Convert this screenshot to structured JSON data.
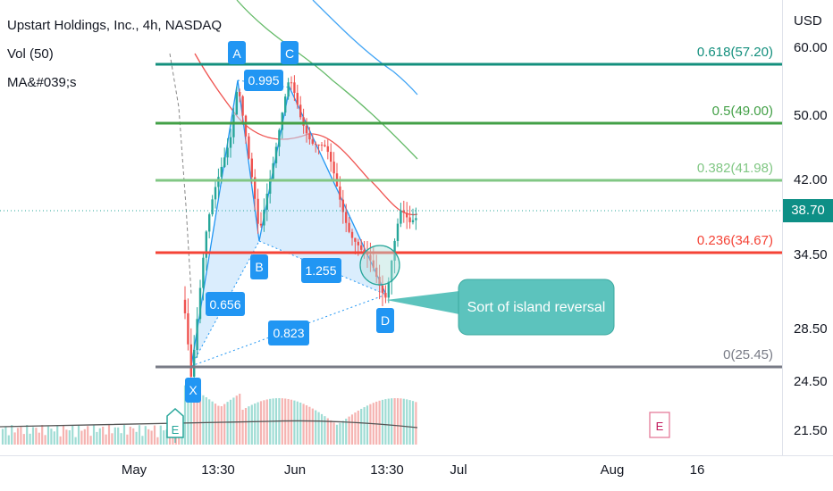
{
  "header": {
    "title": "Upstart Holdings, Inc., 4h, NASDAQ",
    "vol": "Vol (50)",
    "mas": "MA&#039;s"
  },
  "currency": "USD",
  "last_price": "38.70",
  "colors": {
    "up": "#26a69a",
    "down": "#ef5350",
    "fib618": "#138f7d",
    "fib5": "#43a047",
    "fib382": "#81c784",
    "fib236": "#f44336",
    "fib0": "#787b86",
    "pattern": "#2196f3",
    "callout": "#5cc3bd"
  },
  "chart_data": {
    "type": "candlestick",
    "title": "Upstart Holdings, Inc., 4h, NASDAQ",
    "y_axis": {
      "unit": "USD",
      "ticks": [
        60.0,
        50.0,
        42.0,
        34.5,
        28.5,
        24.5,
        21.5
      ],
      "tick_labels": [
        "60.00",
        "50.00",
        "42.00",
        "34.50",
        "28.50",
        "24.50",
        "21.50"
      ],
      "scale": "log"
    },
    "x_axis": {
      "tick_labels": [
        "May",
        "13:30",
        "Jun",
        "13:30",
        "Jul",
        "Aug",
        "16"
      ]
    },
    "fib_levels": [
      {
        "label": "0.618(57.20)",
        "value": 57.2
      },
      {
        "label": "0.5(49.00)",
        "value": 49.0
      },
      {
        "label": "0.382(41.98)",
        "value": 41.98
      },
      {
        "label": "0.236(34.67)",
        "value": 34.67
      },
      {
        "label": "0(25.45)",
        "value": 25.45
      }
    ],
    "pattern_points": [
      {
        "label": "X",
        "value": 25.45
      },
      {
        "label": "A",
        "value": 55.0
      },
      {
        "label": "B",
        "value": 36.0
      },
      {
        "label": "C",
        "value": 54.5
      },
      {
        "label": "D",
        "value": 31.5
      }
    ],
    "pattern_ratios": [
      "0.656",
      "0.995",
      "1.255",
      "0.823"
    ],
    "annotation": "Sort of island reversal",
    "earnings_markers": [
      "E",
      "E"
    ]
  }
}
